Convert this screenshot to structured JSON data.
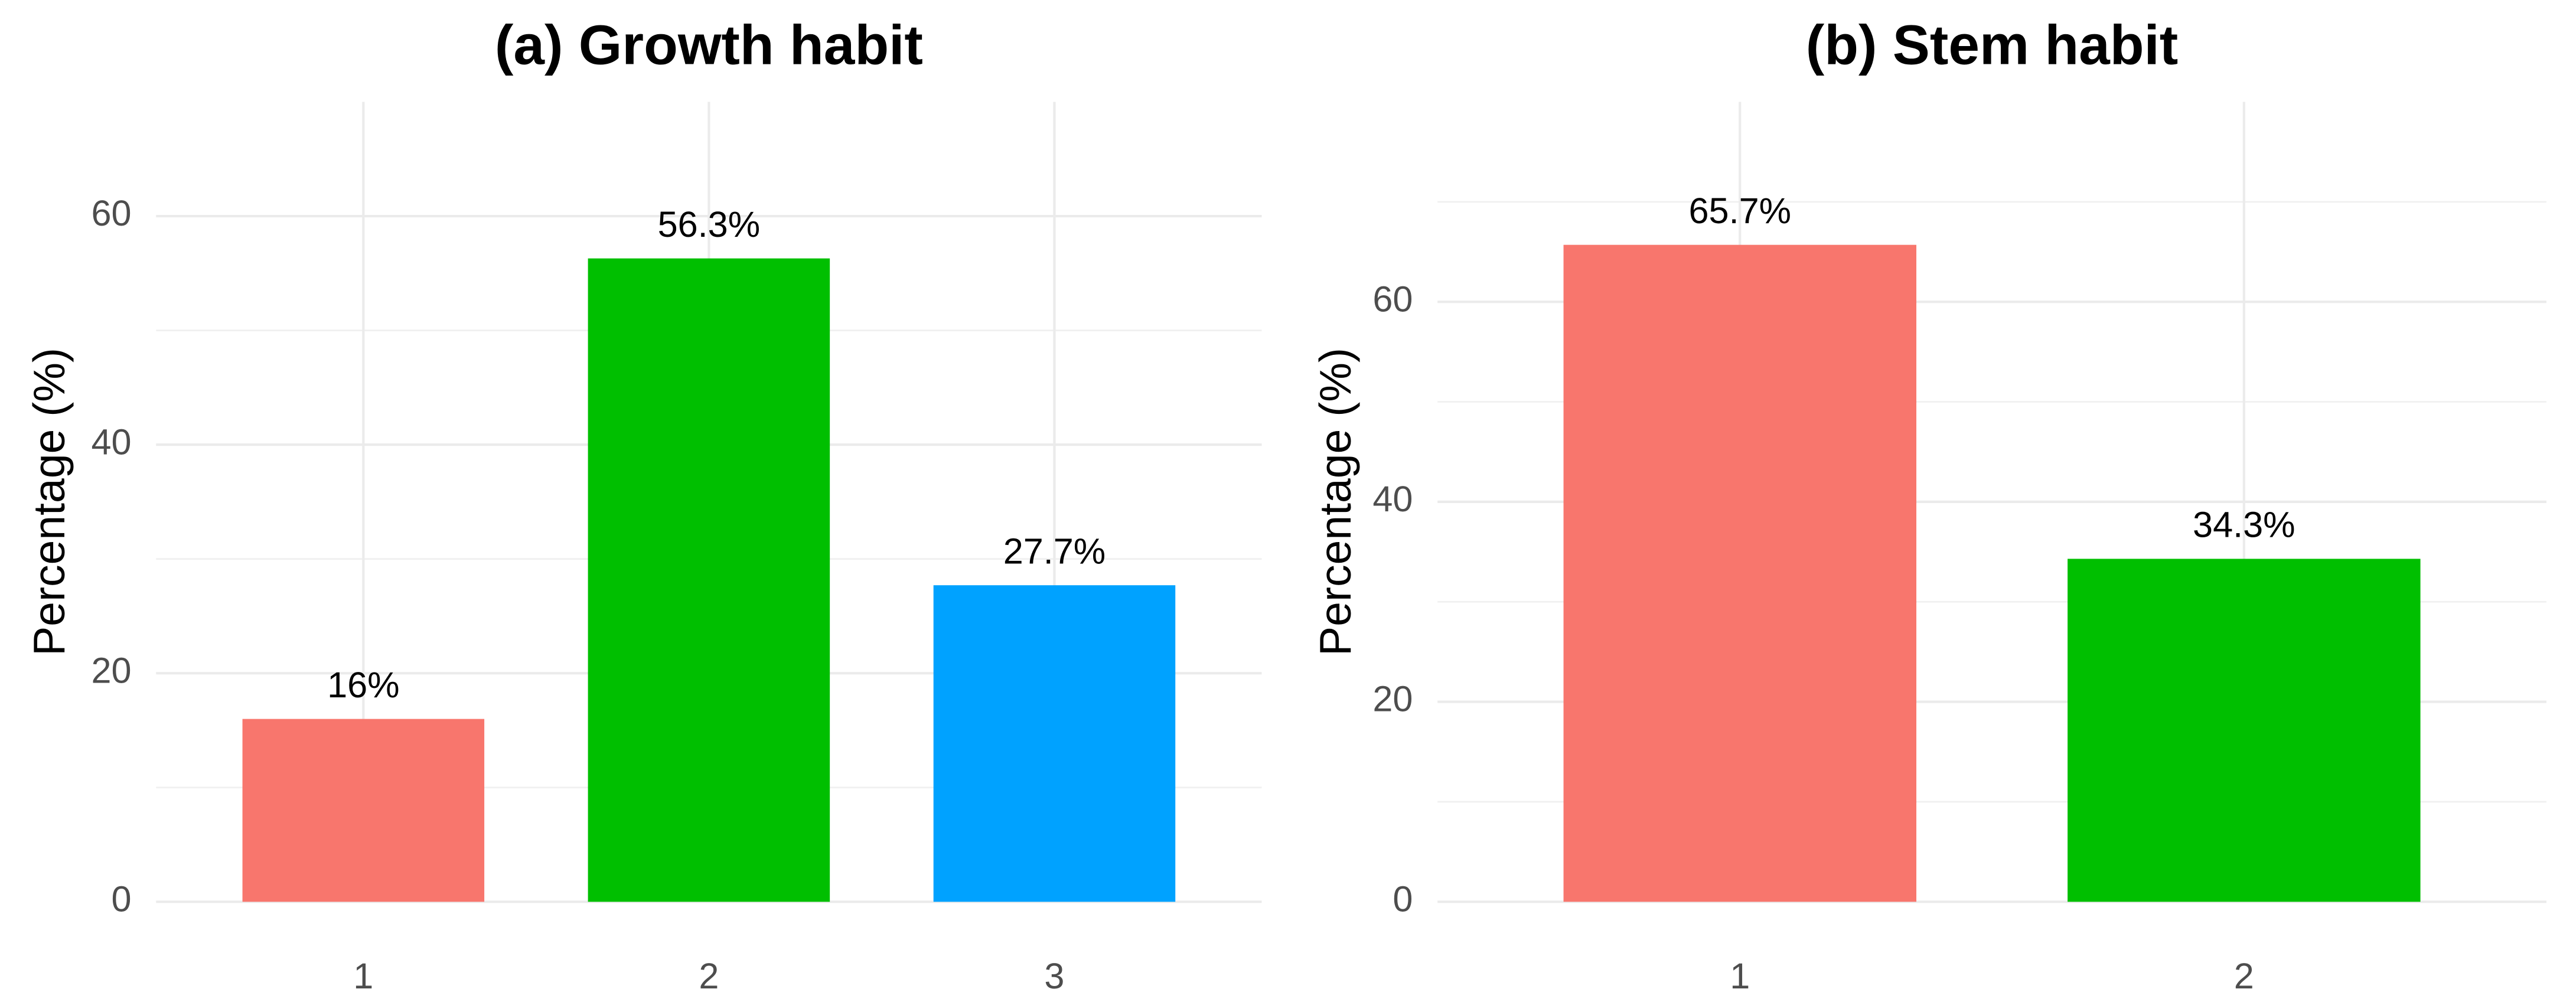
{
  "chart_data": [
    {
      "type": "bar",
      "title": "(a) Growth habit",
      "ylabel": "Percentage (%)",
      "categories": [
        "1",
        "2",
        "3"
      ],
      "values": [
        16,
        56.3,
        27.7
      ],
      "value_labels": [
        "16%",
        "56.3%",
        "27.7%"
      ],
      "colors": [
        "#F8766D",
        "#00BF00",
        "#00A2FF"
      ],
      "ylim": [
        0,
        70
      ],
      "yticks": [
        0,
        20,
        40,
        60
      ],
      "grid": true
    },
    {
      "type": "bar",
      "title": "(b) Stem habit",
      "ylabel": "Percentage (%)",
      "categories": [
        "1",
        "2"
      ],
      "values": [
        65.7,
        34.3
      ],
      "value_labels": [
        "65.7%",
        "34.3%"
      ],
      "colors": [
        "#F8766D",
        "#00BF00"
      ],
      "ylim": [
        0,
        80
      ],
      "yticks": [
        0,
        20,
        40,
        60
      ],
      "grid": true
    }
  ]
}
